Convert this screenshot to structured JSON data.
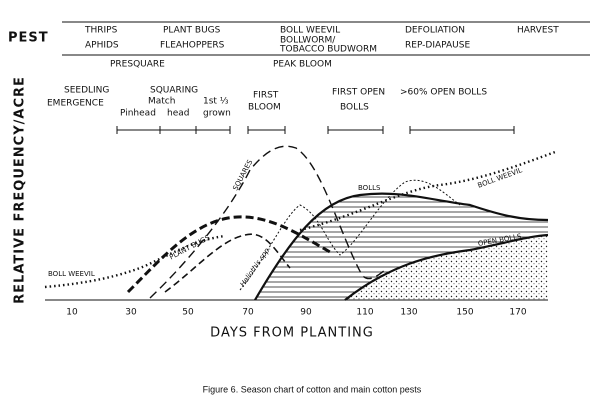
{
  "header": {
    "label": "PEST"
  },
  "pests": [
    {
      "top": "THRIPS",
      "bottom": "APHIDS"
    },
    {
      "top": "PLANT BUGS",
      "bottom": "FLEAHOPPERS"
    },
    {
      "top": "BOLL WEEVIL",
      "middle": "BOLLWORM/",
      "bottom": "TOBACCO BUDWORM"
    },
    {
      "top": "DEFOLIATION",
      "bottom": "REP-DIAPAUSE"
    },
    {
      "top": "HARVEST"
    }
  ],
  "stages": [
    "PRESQUARE",
    "PEAK BLOOM"
  ],
  "growth": {
    "seedling": "SEEDLING",
    "emergence": "EMERGENCE",
    "squaring": "SQUARING",
    "pinhead": "Pinhead",
    "match": "Match",
    "head": "head",
    "third": "1st ⅓",
    "grown": "grown",
    "first": "FIRST",
    "bloom": "BLOOM",
    "first_open": "FIRST OPEN",
    "bolls": "BOLLS",
    "open60": ">60% OPEN BOLLS"
  },
  "curve_labels": {
    "boll_weevil_left": "BOLL WEEVIL",
    "plant_bugs": "PLANT BUGS",
    "squares": "SQUARES",
    "bolls": "BOLLS",
    "boll_weevil_right": "BOLL WEEVIL",
    "open_bolls": "OPEN BOLLS",
    "heliothis": "Heliothis spp."
  },
  "axis": {
    "y_label": "RELATIVE FREQUENCY/ACRE",
    "x_label": "DAYS FROM PLANTING",
    "ticks": [
      10,
      30,
      50,
      70,
      90,
      110,
      130,
      150,
      170
    ]
  },
  "caption": "Figure 6.  Season chart of cotton and main cotton pests"
}
